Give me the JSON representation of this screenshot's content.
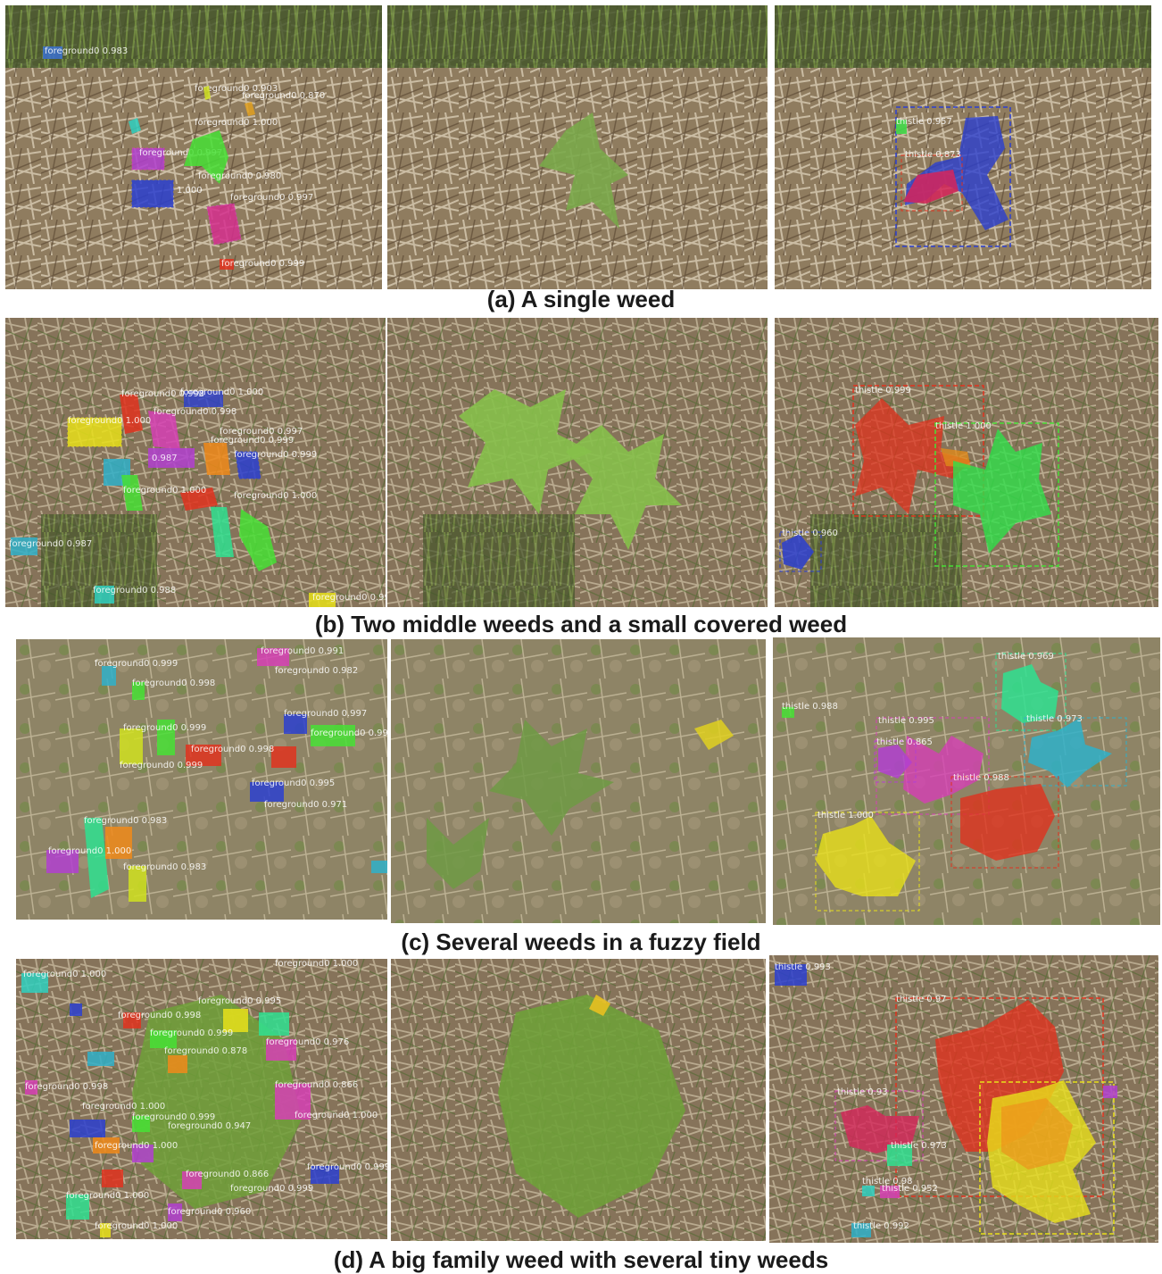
{
  "captions": {
    "a": "(a) A single weed",
    "b": "(b) Two middle weeds and a small covered weed",
    "c": "(c) Several weeds in a fuzzy field",
    "d": "(d) A big family weed with several tiny weeds"
  },
  "rows": {
    "a": {
      "left_labels": [
        "foreground0 0.983",
        "foreground0 0.903",
        "foreground0 0.870",
        "foreground0 1.000",
        "foreground0 0.997",
        "foreground0 0.980",
        "foreground0 1.000",
        "foreground0 0.997",
        "foreground0 0.999"
      ],
      "right_labels": [
        "thistle 0.957",
        "thistle 0.873"
      ]
    },
    "b": {
      "left_labels": [
        "foreground0 0.998",
        "foreground0 1.000",
        "foreground0 0.998",
        "foreground0 0.999",
        "foreground0 0.997",
        "foreground0 0.999",
        "foreground0 0.987",
        "foreground0 0.999",
        "foreground0 1.000",
        "foreground0 1.000",
        "foreground0 0.987",
        "foreground0 0.988",
        "foreground0 0.997"
      ],
      "right_labels": [
        "thistle 0.999",
        "thistle 1.000",
        "thistle 0.960"
      ]
    },
    "c": {
      "left_labels": [
        "foreground0 0.999",
        "foreground0 0.991",
        "foreground0 0.998",
        "foreground0 0.982",
        "foreground0 0.999",
        "foreground0 0.997",
        "foreground0 0.998",
        "foreground0 0.999",
        "foreground0 0.995",
        "foreground0 0.971",
        "foreground0 0.999",
        "foreground0 1.000",
        "foreground0 0.983",
        "foreground0 0.983"
      ],
      "right_labels": [
        "thistle 0.969",
        "thistle 0.988",
        "thistle 0.995",
        "thistle 0.973",
        "thistle 0.865",
        "thistle 0.988",
        "thistle 1.000"
      ]
    },
    "d": {
      "left_labels": [
        "foreground0 1.000",
        "foreground0 1.000",
        "foreground0 0.998",
        "foreground0 0.995",
        "foreground0 0.999",
        "foreground0 0.976",
        "foreground0 0.878",
        "foreground0 0.998",
        "foreground0 0.866",
        "foreground0 1.000",
        "foreground0 0.999",
        "foreground0 1.000",
        "foreground0 0.947",
        "foreground0 1.000",
        "foreground0 0.999",
        "foreground0 0.866",
        "foreground0 1.000",
        "foreground0 0.999",
        "foreground0 0.960",
        "foreground0 1.000"
      ],
      "right_labels": [
        "thistle 0.993",
        "thistle 0.97",
        "thistle 0.93",
        "thistle 0.973",
        "thistle 0.98",
        "thistle 0.952",
        "thistle 0.992"
      ]
    }
  },
  "colors": {
    "soil_dry": "#9b8a6e",
    "grass_green": "#4f6b2f",
    "weed_green": "#7cbf3c",
    "mask_red": "#e0321e",
    "mask_blue": "#2b3fd0",
    "mask_green": "#2fe04a",
    "mask_magenta": "#d63fb5",
    "mask_yellow": "#e8e01a",
    "mask_cyan": "#2fb0c9",
    "mask_orange": "#f08a1a"
  }
}
